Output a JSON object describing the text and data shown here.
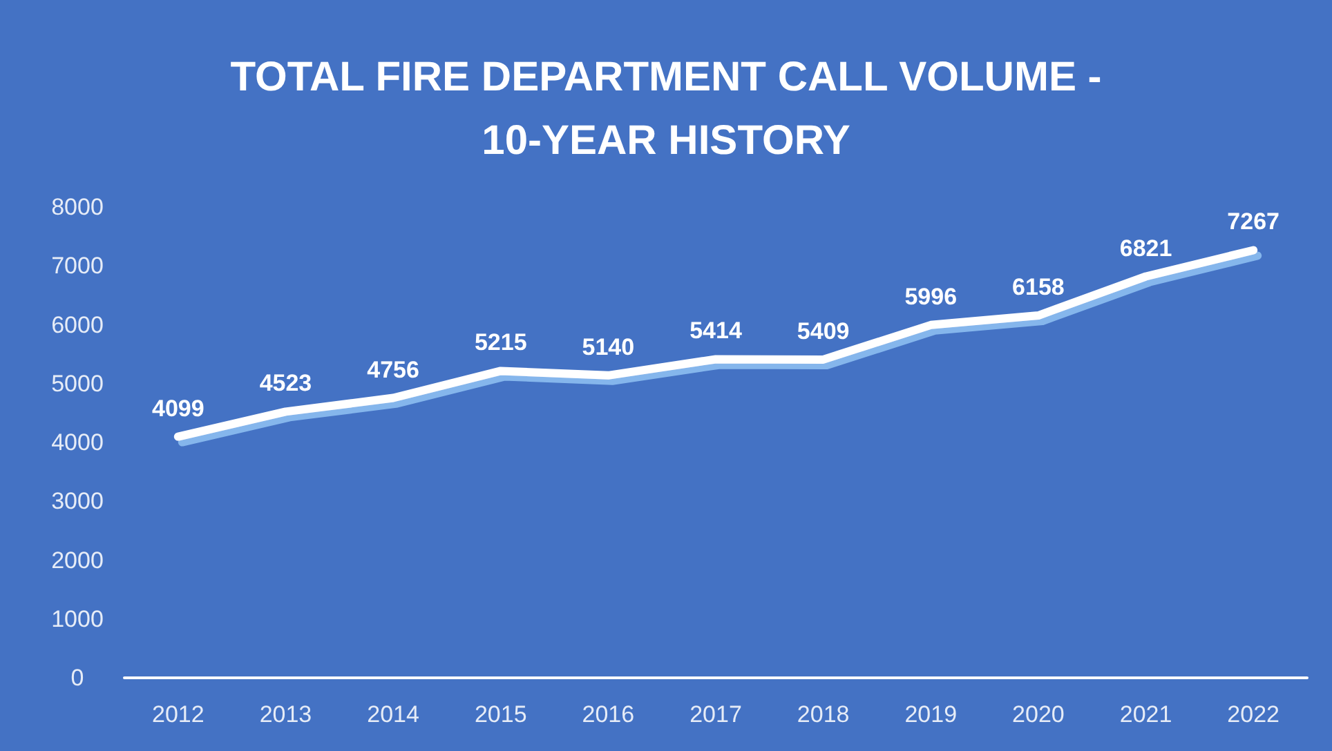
{
  "chart_data": {
    "type": "line",
    "title": "TOTAL FIRE DEPARTMENT CALL VOLUME -\n10-YEAR HISTORY",
    "categories": [
      "2012",
      "2013",
      "2014",
      "2015",
      "2016",
      "2017",
      "2018",
      "2019",
      "2020",
      "2021",
      "2022"
    ],
    "series": [
      {
        "color": "#ffffff",
        "values": [
          4099,
          4523,
          4756,
          5215,
          5140,
          5414,
          5409,
          5996,
          6158,
          6821,
          7267
        ]
      }
    ],
    "ylim": [
      0,
      8000
    ],
    "yticks": [
      0,
      1000,
      2000,
      3000,
      4000,
      5000,
      6000,
      7000,
      8000
    ],
    "grid": false,
    "data_labels": true,
    "marker": "none",
    "line_style": "solid"
  }
}
